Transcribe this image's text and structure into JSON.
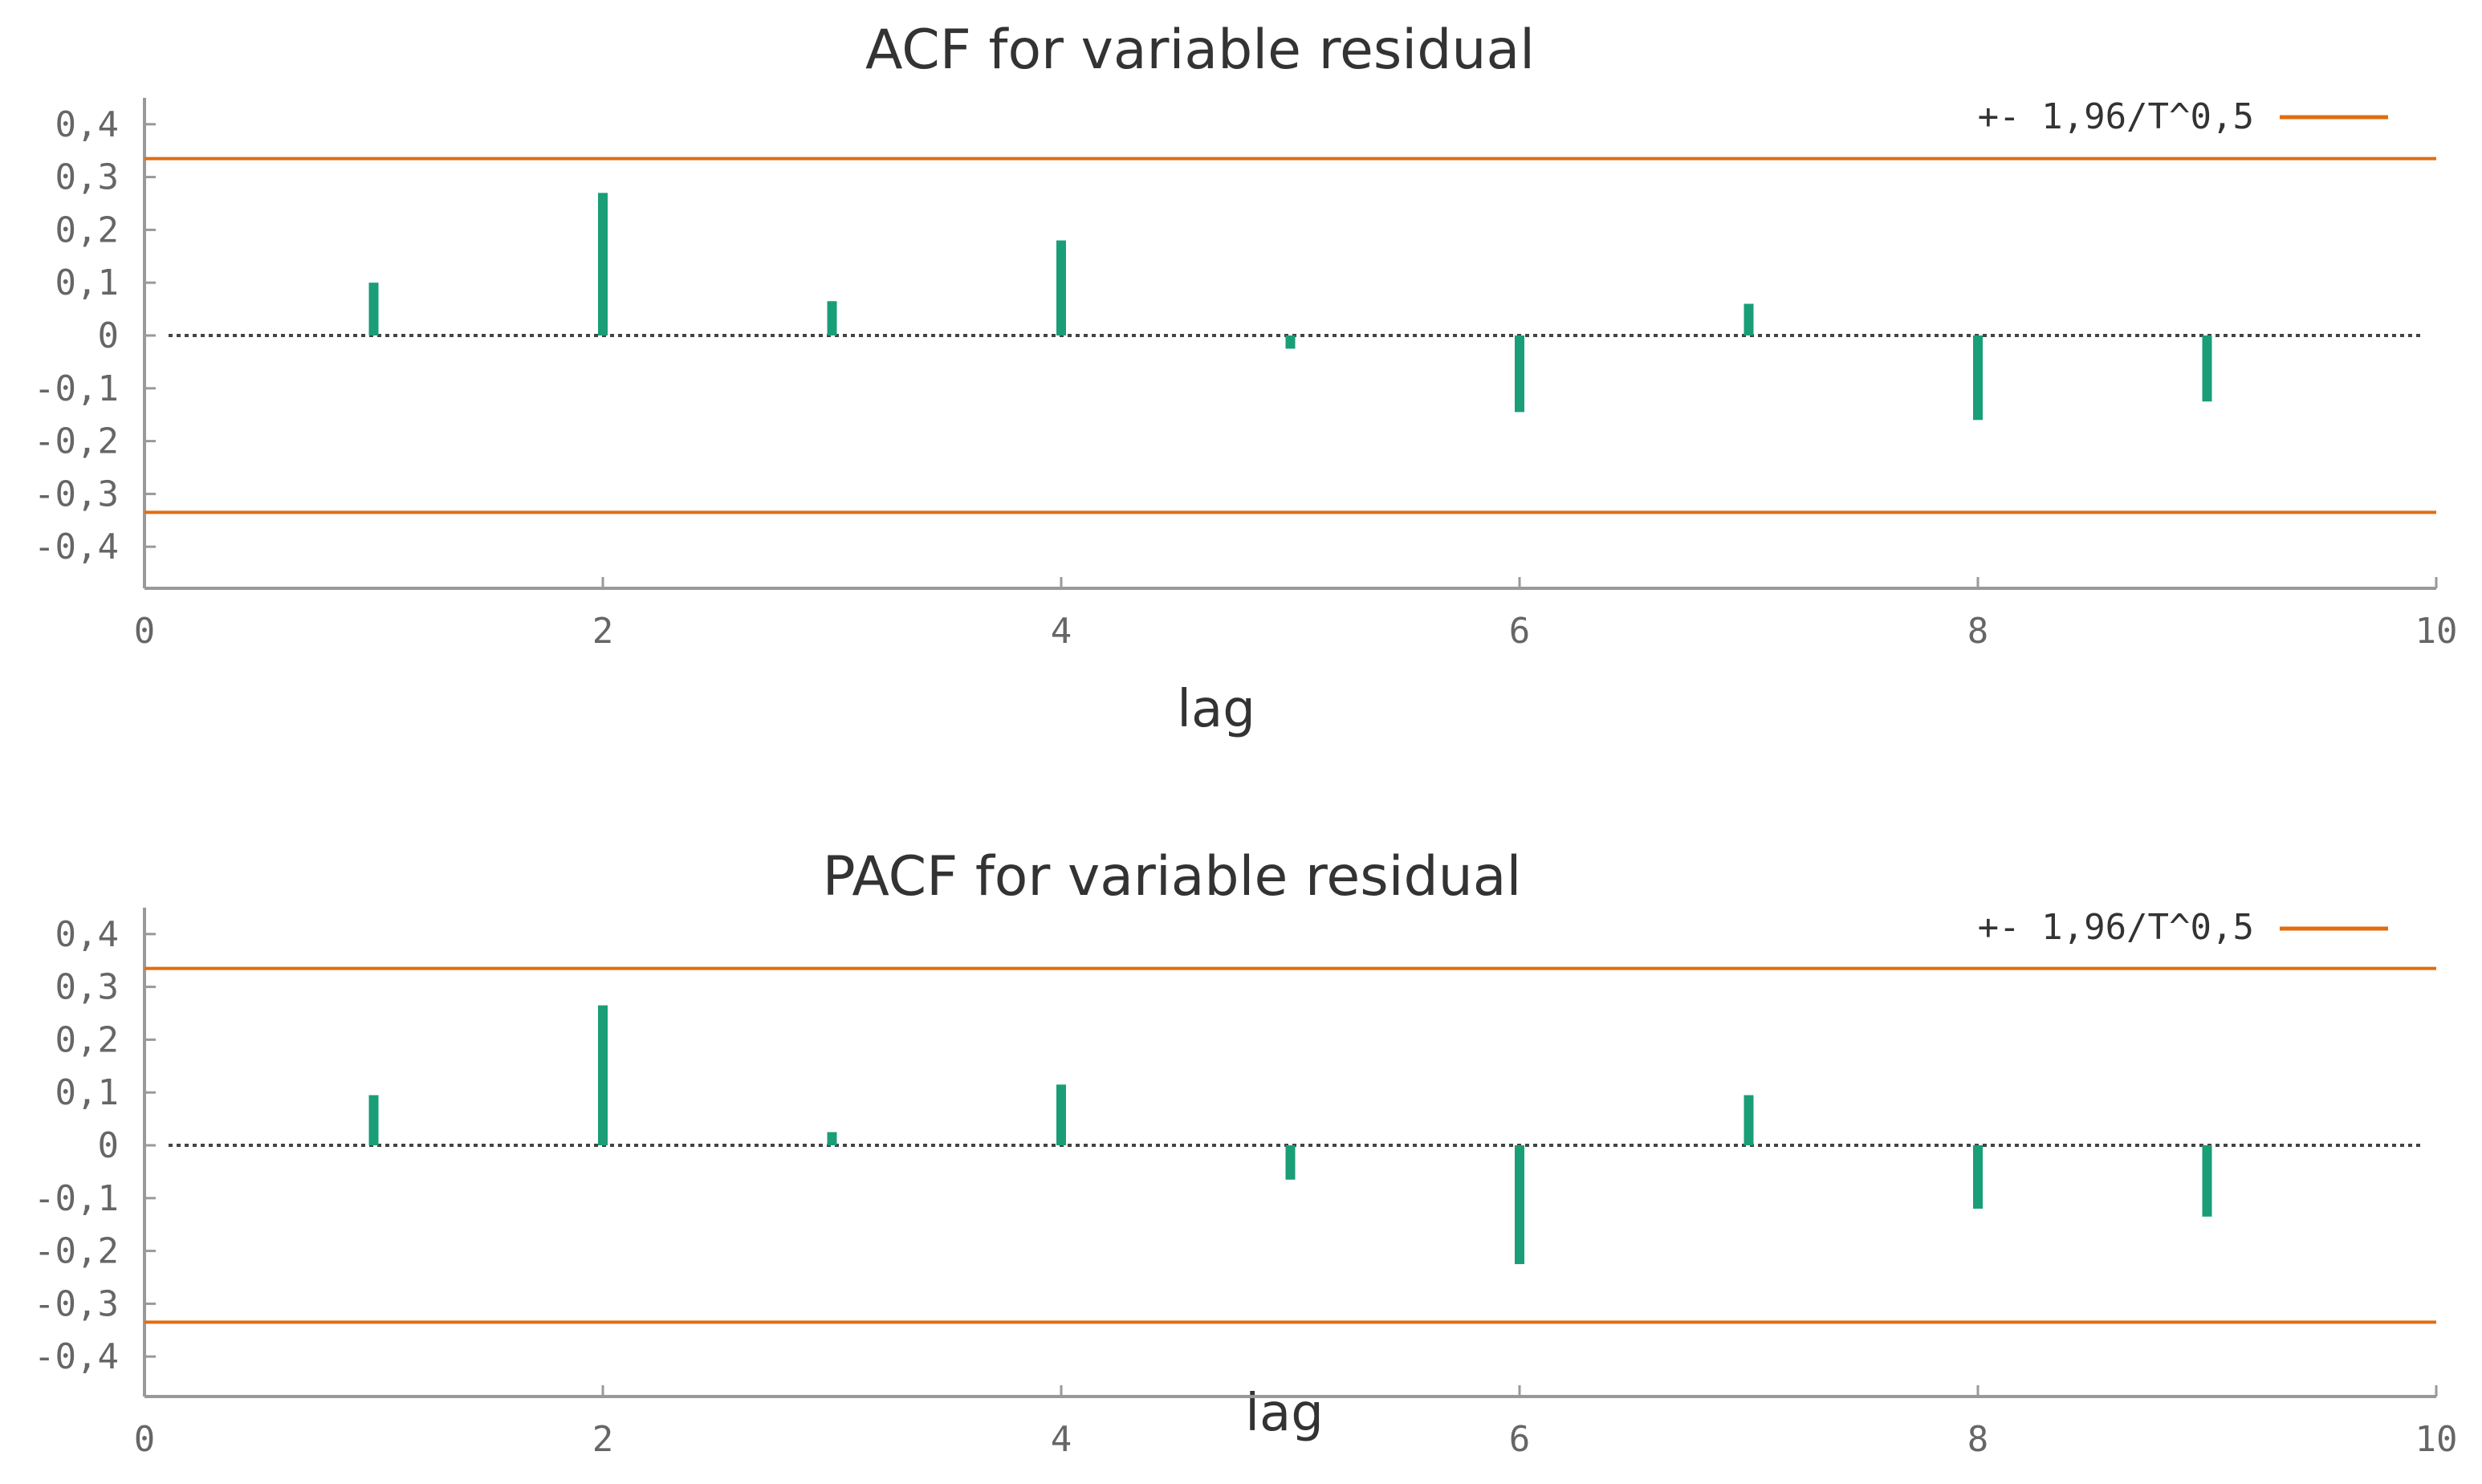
{
  "chart_data": [
    {
      "type": "bar",
      "title": "ACF for variable residual",
      "xlabel": "lag",
      "ylabel": "",
      "xlim": [
        0,
        10
      ],
      "ylim": [
        -0.45,
        0.45
      ],
      "x_ticks": [
        "0",
        "2",
        "4",
        "6",
        "8",
        "10"
      ],
      "y_ticks": [
        "0,4",
        "0,3",
        "0,2",
        "0,1",
        "0",
        "-0,1",
        "-0,2",
        "-0,3",
        "-0,4"
      ],
      "legend": {
        "label": "+- 1,96/T^0,5",
        "placement": "top-right"
      },
      "confidence_bound": 0.335,
      "lags": [
        1,
        2,
        3,
        4,
        5,
        6,
        7,
        8,
        9
      ],
      "values": [
        0.1,
        0.27,
        0.065,
        0.18,
        -0.025,
        -0.145,
        0.06,
        -0.16,
        -0.125
      ],
      "colors": {
        "bars": "#1a9e77",
        "bounds": "#e06d10",
        "zero_line": "#444444"
      }
    },
    {
      "type": "bar",
      "title": "PACF for variable residual",
      "xlabel": "lag",
      "ylabel": "",
      "xlim": [
        0,
        10
      ],
      "ylim": [
        -0.45,
        0.45
      ],
      "x_ticks": [
        "0",
        "2",
        "4",
        "6",
        "8",
        "10"
      ],
      "y_ticks": [
        "0,4",
        "0,3",
        "0,2",
        "0,1",
        "0",
        "-0,1",
        "-0,2",
        "-0,3",
        "-0,4"
      ],
      "legend": {
        "label": "+- 1,96/T^0,5",
        "placement": "top-right"
      },
      "confidence_bound": 0.335,
      "lags": [
        1,
        2,
        3,
        4,
        5,
        6,
        7,
        8,
        9
      ],
      "values": [
        0.095,
        0.265,
        0.025,
        0.115,
        -0.065,
        -0.225,
        0.095,
        -0.12,
        -0.135
      ],
      "colors": {
        "bars": "#1a9e77",
        "bounds": "#e06d10",
        "zero_line": "#444444"
      }
    }
  ]
}
